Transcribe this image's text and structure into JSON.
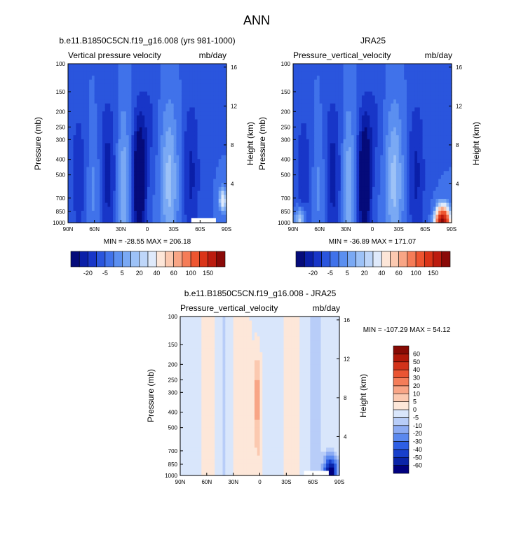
{
  "suptitle": "ANN",
  "chart_data": [
    {
      "type": "heatmap",
      "title": "b.e11.B1850C5CN.f19_g16.008 (yrs 981-1000)",
      "subtitle_left": "Vertical pressure velocity",
      "subtitle_right": "mb/day",
      "xlabel": "",
      "ylabel": "Pressure (mb)",
      "ylabel_right": "Height (km)",
      "x_ticks": [
        "90N",
        "60N",
        "30N",
        "0",
        "30S",
        "60S",
        "90S"
      ],
      "x_tick_values": [
        90,
        60,
        30,
        0,
        -30,
        -60,
        -90
      ],
      "y_ticks": [
        "100",
        "150",
        "200",
        "250",
        "300",
        "400",
        "500",
        "700",
        "850",
        "1000"
      ],
      "y_tick_values": [
        100,
        150,
        200,
        250,
        300,
        400,
        500,
        700,
        850,
        1000
      ],
      "y_ticks_right": [
        "16",
        "12",
        "8",
        "4"
      ],
      "y_tick_values_right": [
        16,
        12,
        8,
        4
      ],
      "ylim": [
        1000,
        100
      ],
      "xlim": [
        90,
        -90
      ],
      "y_scale": "log",
      "stats": "MIN = -28.55  MAX = 206.18",
      "colorbar": {
        "orientation": "horizontal",
        "labels": [
          "-20",
          "-5",
          "5",
          "20",
          "40",
          "60",
          "100",
          "150"
        ]
      }
    },
    {
      "type": "heatmap",
      "title": "JRA25",
      "subtitle_left": "Pressure_vertical_velocity",
      "subtitle_right": "mb/day",
      "xlabel": "",
      "ylabel": "Pressure (mb)",
      "ylabel_right": "Height (km)",
      "x_ticks": [
        "90N",
        "60N",
        "30N",
        "0",
        "30S",
        "60S",
        "90S"
      ],
      "x_tick_values": [
        90,
        60,
        30,
        0,
        -30,
        -60,
        -90
      ],
      "y_ticks": [
        "100",
        "150",
        "200",
        "250",
        "300",
        "400",
        "500",
        "700",
        "850",
        "1000"
      ],
      "y_tick_values": [
        100,
        150,
        200,
        250,
        300,
        400,
        500,
        700,
        850,
        1000
      ],
      "y_ticks_right": [
        "16",
        "12",
        "8",
        "4"
      ],
      "y_tick_values_right": [
        16,
        12,
        8,
        4
      ],
      "ylim": [
        1000,
        100
      ],
      "xlim": [
        90,
        -90
      ],
      "y_scale": "log",
      "stats": "MIN = -36.89  MAX = 171.07",
      "colorbar": {
        "orientation": "horizontal",
        "labels": [
          "-20",
          "-5",
          "5",
          "20",
          "40",
          "60",
          "100",
          "150"
        ]
      }
    },
    {
      "type": "heatmap",
      "title": "b.e11.B1850C5CN.f19_g16.008 - JRA25",
      "subtitle_left": "Pressure_vertical_velocity",
      "subtitle_right": "mb/day",
      "xlabel": "",
      "ylabel": "Pressure (mb)",
      "ylabel_right": "Height (km)",
      "x_ticks": [
        "90N",
        "60N",
        "30N",
        "0",
        "30S",
        "60S",
        "90S"
      ],
      "x_tick_values": [
        90,
        60,
        30,
        0,
        -30,
        -60,
        -90
      ],
      "y_ticks": [
        "100",
        "150",
        "200",
        "250",
        "300",
        "400",
        "500",
        "700",
        "850",
        "1000"
      ],
      "y_tick_values": [
        100,
        150,
        200,
        250,
        300,
        400,
        500,
        700,
        850,
        1000
      ],
      "y_ticks_right": [
        "16",
        "12",
        "8",
        "4"
      ],
      "y_tick_values_right": [
        16,
        12,
        8,
        4
      ],
      "ylim": [
        1000,
        100
      ],
      "xlim": [
        90,
        -90
      ],
      "y_scale": "log",
      "stats": "MIN = -107.29  MAX =  54.12",
      "colorbar": {
        "orientation": "vertical",
        "labels": [
          "60",
          "50",
          "40",
          "30",
          "20",
          "10",
          "5",
          "0",
          "-5",
          "-10",
          "-20",
          "-30",
          "-40",
          "-50",
          "-60"
        ]
      }
    }
  ],
  "colors": {
    "abs_scale": [
      "#050b7a",
      "#0a1fa8",
      "#1836c8",
      "#2a55dd",
      "#4072ea",
      "#5b8ff0",
      "#7aa9f4",
      "#9dc2f7",
      "#bed6f9",
      "#dfeafb",
      "#fde6d8",
      "#fbc9b0",
      "#f8a585",
      "#f57c57",
      "#ee5530",
      "#da3418",
      "#bc1c0f",
      "#8a0a08"
    ],
    "diff_scale": [
      "#00007f",
      "#0a24a8",
      "#1840cc",
      "#2e5fe4",
      "#5a88ef",
      "#8cabf3",
      "#b8cdf8",
      "#d9e6fb",
      "#fde7d9",
      "#fbc9b0",
      "#f8a586",
      "#f47d59",
      "#ea5432",
      "#d2321a",
      "#b01809",
      "#870a04"
    ]
  }
}
